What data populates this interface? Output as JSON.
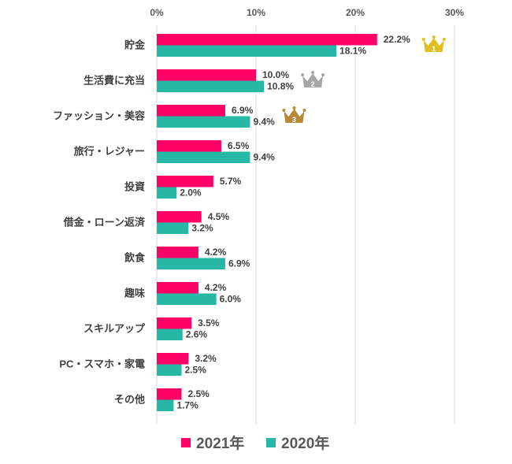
{
  "chart_data": {
    "type": "bar",
    "orientation": "horizontal",
    "categories": [
      "貯金",
      "生活費に充当",
      "ファッション・美容",
      "旅行・レジャー",
      "投資",
      "借金・ローン返済",
      "飲食",
      "趣味",
      "スキルアップ",
      "PC・スマホ・家電",
      "その他"
    ],
    "series": [
      {
        "name": "2021年",
        "color": "#FF0066",
        "values": [
          22.2,
          10.0,
          6.9,
          6.5,
          5.7,
          4.5,
          4.2,
          4.2,
          3.5,
          3.2,
          2.5
        ],
        "labels": [
          "22.2%",
          "10.0%",
          "6.9%",
          "6.5%",
          "5.7%",
          "4.5%",
          "4.2%",
          "4.2%",
          "3.5%",
          "3.2%",
          "2.5%"
        ]
      },
      {
        "name": "2020年",
        "color": "#26B8A5",
        "values": [
          18.1,
          10.8,
          9.4,
          9.4,
          2.0,
          3.2,
          6.9,
          6.0,
          2.6,
          2.5,
          1.7
        ],
        "labels": [
          "18.1%",
          "10.8%",
          "9.4%",
          "9.4%",
          "2.0%",
          "3.2%",
          "6.9%",
          "6.0%",
          "2.6%",
          "2.5%",
          "1.7%"
        ]
      }
    ],
    "xlim": [
      0,
      30
    ],
    "xticks": [
      "0%",
      "10%",
      "20%",
      "30%"
    ],
    "grid": true,
    "legend": "bottom",
    "rank_badges": [
      {
        "rank": "1",
        "category_index": 0,
        "color": "#E0C020"
      },
      {
        "rank": "2",
        "category_index": 1,
        "color": "#A6A6A6"
      },
      {
        "rank": "3",
        "category_index": 2,
        "color": "#B8893A"
      }
    ]
  }
}
